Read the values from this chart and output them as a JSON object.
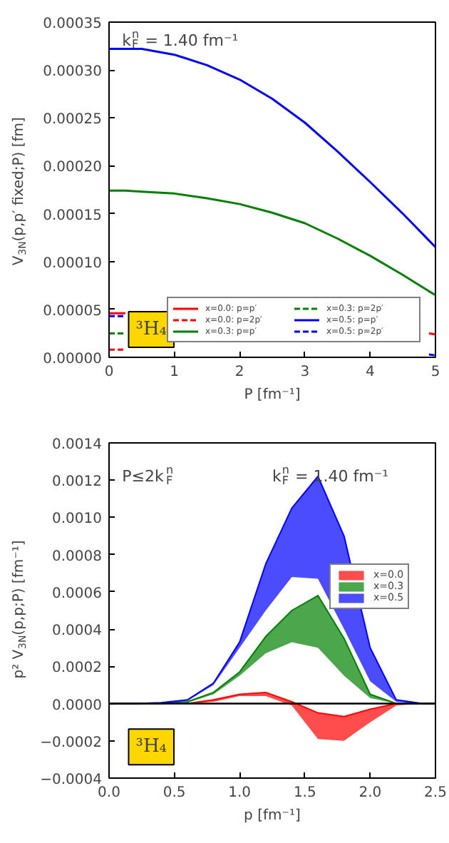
{
  "chart_data": [
    {
      "type": "line",
      "ylabel": "V$_{3N}$(p,p′ fixed;P) [fm]",
      "xlabel": "P [fm⁻¹]",
      "annotations": [
        "k$_{F}$$^{n}$ = 1.40 fm⁻¹",
        "³H₄"
      ],
      "xlim": [
        0,
        5
      ],
      "xticks": [
        0,
        1,
        2,
        3,
        4,
        5
      ],
      "ylim": [
        0,
        0.00035
      ],
      "yticks": [
        {
          "value": 0,
          "label": "0.00000"
        },
        {
          "value": 5e-05,
          "label": "0.00005"
        },
        {
          "value": 0.0001,
          "label": "0.00010"
        },
        {
          "value": 0.00015,
          "label": "0.00015"
        },
        {
          "value": 0.0002,
          "label": "0.00020"
        },
        {
          "value": 0.00025,
          "label": "0.00025"
        },
        {
          "value": 0.0003,
          "label": "0.00030"
        },
        {
          "value": 0.00035,
          "label": "0.00035"
        }
      ],
      "x": [
        0,
        0.25,
        0.5,
        1,
        1.5,
        2,
        2.5,
        3,
        3.5,
        4,
        4.5,
        4.9,
        5
      ],
      "legend": "bottom right",
      "grid": false,
      "series": [
        {
          "name": "x=0.0: p=p′",
          "color": "#ff0000",
          "line_style": "solid",
          "values": [
            4.6e-05,
            4.6e-05,
            null,
            null,
            null,
            null,
            null,
            null,
            null,
            null,
            null,
            2.5e-05,
            2.4e-05
          ]
        },
        {
          "name": "x=0.0: p=2p′",
          "color": "#ff0000",
          "line_style": "dashed",
          "values": [
            8e-06,
            8e-06,
            null,
            null,
            null,
            null,
            null,
            null,
            null,
            null,
            null,
            null,
            null
          ]
        },
        {
          "name": "x=0.3: p=p′",
          "color": "#008000",
          "line_style": "solid",
          "values": [
            0.000174,
            0.000174,
            0.000173,
            0.000171,
            0.000166,
            0.00016,
            0.000151,
            0.00014,
            0.000124,
            0.000106,
            8.6e-05,
            6.9e-05,
            6.5e-05
          ]
        },
        {
          "name": "x=0.3: p=2p′",
          "color": "#008000",
          "line_style": "dashed",
          "values": [
            2.5e-05,
            2.5e-05,
            null,
            null,
            null,
            null,
            null,
            null,
            null,
            null,
            null,
            null,
            null
          ]
        },
        {
          "name": "x=0.5: p=p′",
          "color": "#0000ff",
          "line_style": "solid",
          "values": [
            0.000322,
            0.000322,
            0.000322,
            0.000316,
            0.000305,
            0.00029,
            0.00027,
            0.000245,
            0.000215,
            0.000183,
            0.00015,
            0.000122,
            0.000115
          ]
        },
        {
          "name": "x=0.5: p=2p′",
          "color": "#0000ff",
          "line_style": "dashed",
          "values": [
            4.3e-05,
            4.3e-05,
            null,
            null,
            null,
            null,
            null,
            null,
            null,
            null,
            null,
            3e-06,
            2e-06
          ]
        }
      ]
    },
    {
      "type": "line",
      "ylabel": "p² V$_{3N}$(p,p;P) [fm⁻¹]",
      "xlabel": "p [fm⁻¹]",
      "annotations": [
        "P≤2k$_{F}$$^{n}$",
        "k$_{F}$$^{n}$ = 1.40 fm⁻¹",
        "³H₄"
      ],
      "xlim": [
        0,
        2.5
      ],
      "xticks": [
        {
          "value": 0,
          "label": "0.0"
        },
        {
          "value": 0.5,
          "label": "0.5"
        },
        {
          "value": 1,
          "label": "1.0"
        },
        {
          "value": 1.5,
          "label": "1.5"
        },
        {
          "value": 2,
          "label": "2.0"
        },
        {
          "value": 2.5,
          "label": "2.5"
        }
      ],
      "ylim": [
        -0.0004,
        0.0014
      ],
      "yticks": [
        {
          "value": -0.0004,
          "label": "−0.0004"
        },
        {
          "value": -0.0002,
          "label": "−0.0002"
        },
        {
          "value": 0,
          "label": "0.0000"
        },
        {
          "value": 0.0002,
          "label": "0.0002"
        },
        {
          "value": 0.0004,
          "label": "0.0004"
        },
        {
          "value": 0.0006,
          "label": "0.0006"
        },
        {
          "value": 0.0008,
          "label": "0.0008"
        },
        {
          "value": 0.001,
          "label": "0.0010"
        },
        {
          "value": 0.0012,
          "label": "0.0012"
        },
        {
          "value": 0.0014,
          "label": "0.0014"
        }
      ],
      "x": [
        0,
        0.2,
        0.4,
        0.6,
        0.8,
        1.0,
        1.2,
        1.4,
        1.6,
        1.8,
        2.0,
        2.2,
        2.4,
        2.5
      ],
      "ref_lines": [
        {
          "axis": "y",
          "value": 0,
          "color": "#000000"
        }
      ],
      "legend": "right",
      "grid": false,
      "series": [
        {
          "name": "x=0.0",
          "color": "#ff0000",
          "values": [
            null,
            null,
            null,
            0,
            2e-05,
            5e-05,
            6e-05,
            1e-05,
            -5e-05,
            -7e-05,
            -3e-05,
            0,
            0,
            0
          ],
          "lower": [
            0,
            0,
            0,
            0,
            1e-05,
            4e-05,
            4e-05,
            -1e-05,
            -0.00019,
            -0.0002,
            -0.0001,
            -1e-05,
            0,
            0
          ],
          "upper": [
            0,
            0,
            0,
            0,
            2e-05,
            5e-05,
            6e-05,
            1e-05,
            -5e-05,
            -7e-05,
            -3e-05,
            0,
            0,
            0
          ]
        },
        {
          "name": "x=0.3",
          "color": "#008000",
          "values": [
            0,
            0,
            0,
            1e-05,
            6e-05,
            0.00017,
            0.00036,
            0.0005,
            0.00058,
            0.00035,
            5e-05,
            0,
            0,
            0
          ],
          "lower": [
            0,
            0,
            0,
            5e-06,
            5e-05,
            0.00015,
            0.00027,
            0.00033,
            0.0003,
            0.00015,
            3e-05,
            0,
            0,
            0
          ],
          "upper": [
            0,
            0,
            0,
            1e-05,
            6e-05,
            0.00017,
            0.00036,
            0.0005,
            0.00058,
            0.00035,
            5e-05,
            0,
            0,
            0
          ]
        },
        {
          "name": "x=0.5",
          "color": "#0000ff",
          "values": [
            0,
            0,
            5e-06,
            2e-05,
            0.00011,
            0.00033,
            0.00075,
            0.00105,
            0.00122,
            0.0009,
            0.0003,
            2e-05,
            0,
            0
          ],
          "lower": [
            0,
            0,
            0,
            1.5e-05,
            0.0001,
            0.0003,
            0.0005,
            0.00068,
            0.00067,
            0.0004,
            0.00012,
            1e-05,
            0,
            0
          ],
          "upper": [
            0,
            0,
            5e-06,
            2e-05,
            0.00011,
            0.00033,
            0.00075,
            0.00105,
            0.00122,
            0.0009,
            0.0003,
            2e-05,
            0,
            0
          ]
        }
      ]
    }
  ]
}
